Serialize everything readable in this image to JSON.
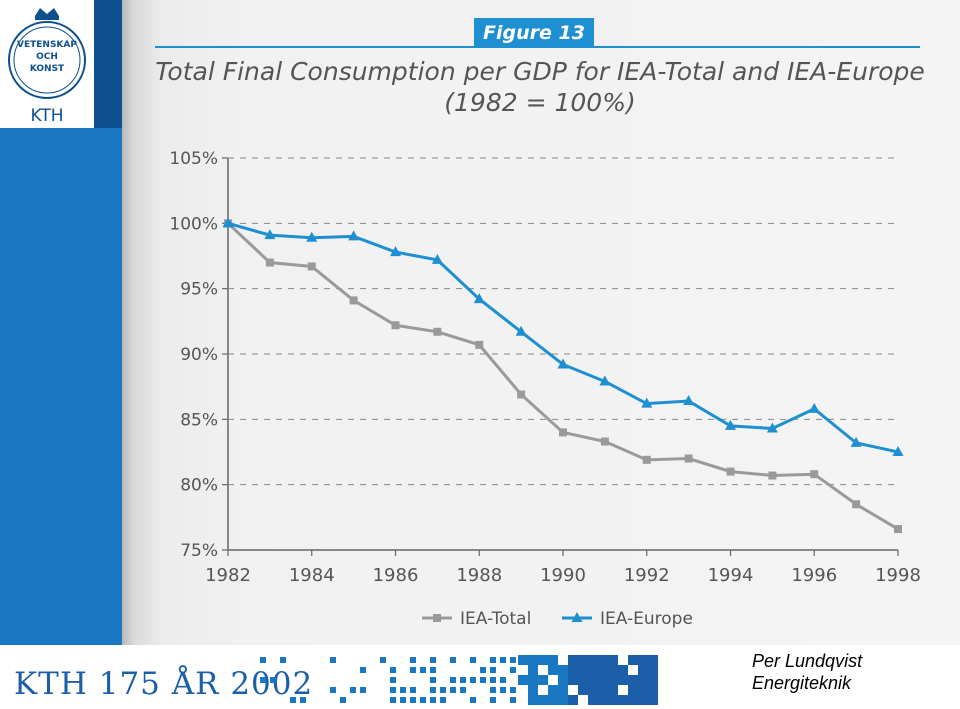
{
  "logo": {
    "seal_lines": [
      "VETENSKAP",
      "OCH",
      "KONST"
    ],
    "wordmark": "KTH"
  },
  "figure_badge": "Figure 13",
  "chart_data": {
    "type": "line",
    "title": "Total Final Consumption per GDP for IEA-Total and IEA-Europe",
    "subtitle": "(1982 = 100%)",
    "x": [
      1982,
      1983,
      1984,
      1985,
      1986,
      1987,
      1988,
      1989,
      1990,
      1991,
      1992,
      1993,
      1994,
      1995,
      1996,
      1997,
      1998
    ],
    "x_tick_labels": [
      "1982",
      "1984",
      "1986",
      "1988",
      "1990",
      "1992",
      "1994",
      "1996",
      "1998"
    ],
    "y_tick_labels": [
      "75%",
      "80%",
      "85%",
      "90%",
      "95%",
      "100%",
      "105%"
    ],
    "xlim": [
      1982,
      1998
    ],
    "ylim": [
      75,
      105
    ],
    "grid": "horizontal dashed",
    "legend_position": "bottom",
    "series": [
      {
        "name": "IEA-Total",
        "color": "#9a9a9a",
        "marker": "square",
        "values": [
          100,
          97.0,
          96.7,
          94.1,
          92.2,
          91.7,
          90.7,
          86.9,
          84.0,
          83.3,
          81.9,
          82.0,
          81.0,
          80.7,
          80.8,
          78.5,
          76.6
        ]
      },
      {
        "name": "IEA-Europe",
        "color": "#1e8fd0",
        "marker": "triangle",
        "values": [
          100,
          99.1,
          98.9,
          99.0,
          97.8,
          97.2,
          94.2,
          91.7,
          89.2,
          87.9,
          86.2,
          86.4,
          84.5,
          84.3,
          85.8,
          83.2,
          82.5
        ]
      }
    ]
  },
  "footer": {
    "kth_anniversary": "KTH 175 ÅR 2002",
    "author": "Per Lundqvist",
    "department": "Energiteknik"
  },
  "colors": {
    "brand_blue": "#1a78c2",
    "dark_blue": "#0d4f8f",
    "figure_blue": "#1e8fd0"
  }
}
